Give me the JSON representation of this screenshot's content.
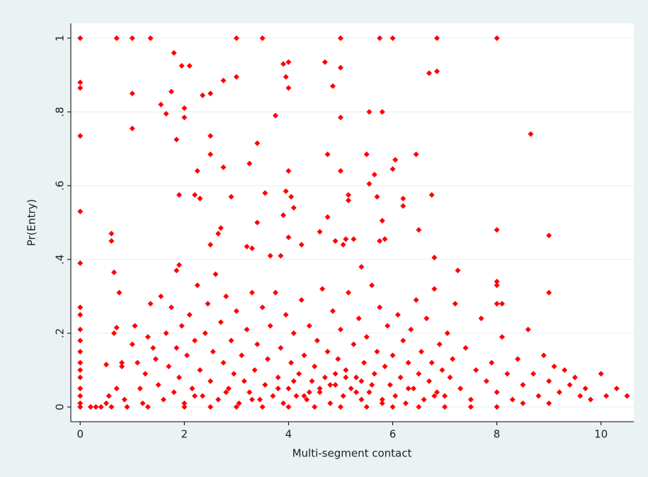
{
  "chart_data": {
    "type": "scatter",
    "x_label": "Multi-segment contact",
    "y_label": "Pr(Entry)",
    "color": "#ff0000",
    "grid": true,
    "xlim": [
      -0.18,
      10.63
    ],
    "ylim": [
      -0.04,
      1.04
    ],
    "xticks": [
      0,
      2,
      4,
      6,
      8,
      10
    ],
    "yticks": [
      0,
      {
        "value": 0.2,
        "label": ".2"
      },
      {
        "value": 0.4,
        "label": ".4"
      },
      {
        "value": 0.6,
        "label": ".6"
      },
      {
        "value": 0.8,
        "label": ".8"
      },
      1
    ],
    "x": [
      0,
      0,
      0,
      0,
      0,
      0,
      0,
      0,
      0,
      0,
      0,
      0,
      0,
      0,
      0,
      0,
      0,
      0,
      0.7,
      1,
      1.35,
      3,
      3.5,
      5,
      5.75,
      6,
      6.85,
      8,
      1.8,
      1.95,
      2.1,
      1,
      1.75,
      1.55,
      2,
      1.65,
      2,
      2.35,
      2.5,
      2.75,
      3,
      3.9,
      4,
      4.7,
      5,
      4.85,
      3.95,
      4,
      6.7,
      6.85,
      1,
      1.85,
      2.5,
      2.5,
      3.75,
      5,
      5.55,
      5.8,
      8.65,
      3.4,
      4.75,
      5.5,
      6.05,
      6.45,
      2.25,
      2.75,
      3.25,
      4,
      5,
      5.65,
      6,
      1.9,
      2.2,
      2.3,
      2.9,
      3.55,
      3.95,
      4.05,
      5.15,
      5.15,
      5.55,
      5.7,
      6.2,
      6.2,
      6.75,
      3.9,
      4.1,
      4.75,
      3.4,
      5.8,
      5.75,
      5.85,
      0.6,
      0.6,
      0.65,
      0.75,
      0.7,
      0.65,
      1.9,
      1.85,
      2.5,
      2.65,
      2.7,
      3.2,
      3.3,
      3.65,
      3.85,
      4,
      4.25,
      4.6,
      4.9,
      5.05,
      5.1,
      5.25,
      5.4,
      6.5,
      6.8,
      7.25,
      8,
      9,
      9,
      8,
      8,
      8,
      8.1,
      0.2,
      0.3,
      0.4,
      0.5,
      0.5,
      0.55,
      0.6,
      0.7,
      0.8,
      0.8,
      0.85,
      0.9,
      1,
      1.05,
      1.1,
      1.15,
      1.2,
      1.25,
      1.3,
      1.35,
      1.4,
      1.45,
      1.5,
      1.55,
      1.6,
      1.65,
      1.7,
      1.75,
      1.8,
      1.85,
      1.9,
      1.95,
      2,
      2.05,
      2.1,
      2.15,
      2.2,
      2.25,
      2.3,
      2.35,
      2.4,
      2.45,
      2.5,
      2.55,
      2.6,
      2.65,
      2.7,
      2.75,
      2.8,
      2.85,
      2.9,
      2.95,
      3,
      3.05,
      3.1,
      3.15,
      3.2,
      3.25,
      3.3,
      3.35,
      3.4,
      3.45,
      3.5,
      3.55,
      3.6,
      3.65,
      3.7,
      3.75,
      3.8,
      3.85,
      3.9,
      3.95,
      4,
      4.05,
      4.1,
      4.15,
      4.2,
      4.25,
      4.3,
      4.35,
      4.4,
      4.45,
      4.5,
      4.55,
      4.6,
      4.65,
      4.7,
      4.75,
      4.8,
      4.85,
      4.9,
      4.95,
      5,
      5.05,
      5.1,
      5.15,
      5.2,
      5.25,
      5.3,
      5.35,
      5.4,
      5.45,
      5.5,
      5.55,
      5.6,
      5.65,
      5.7,
      5.75,
      5.8,
      5.85,
      5.9,
      5.95,
      6,
      6.05,
      6.1,
      6.15,
      6.2,
      6.25,
      6.3,
      6.35,
      6.4,
      6.45,
      6.5,
      6.55,
      6.6,
      6.65,
      6.7,
      6.75,
      6.8,
      6.85,
      6.9,
      6.95,
      7,
      7.05,
      7.1,
      7.15,
      7.2,
      7.3,
      7.4,
      7.5,
      7.6,
      7.7,
      7.8,
      7.9,
      8,
      8.1,
      8.2,
      8.3,
      8.4,
      8.5,
      8.6,
      8.7,
      8.8,
      8.9,
      9,
      9.1,
      9.2,
      9.3,
      9.4,
      9.5,
      9.6,
      9.7,
      9.8,
      10,
      10.1,
      10.3,
      10.5,
      1.3,
      2,
      2.5,
      3,
      3.5,
      4,
      4.5,
      5,
      5.5,
      6,
      6.5,
      7,
      7.5,
      8,
      8.5,
      9,
      2.2,
      2.8,
      3.3,
      3.8,
      4.3,
      4.8,
      5.3,
      5.8,
      6.3,
      6.8,
      4.1,
      4.6,
      5.1,
      5.6,
      4.4,
      4.9,
      5.4
    ],
    "values": [
      1,
      0.88,
      0.865,
      0.735,
      0.53,
      0.39,
      0.27,
      0.25,
      0.21,
      0.18,
      0.15,
      0.12,
      0.1,
      0.08,
      0.05,
      0.03,
      0.01,
      0,
      1,
      1,
      1,
      1,
      1,
      1,
      1,
      1,
      1,
      1,
      0.96,
      0.925,
      0.925,
      0.85,
      0.855,
      0.82,
      0.81,
      0.795,
      0.785,
      0.845,
      0.85,
      0.885,
      0.895,
      0.93,
      0.935,
      0.935,
      0.92,
      0.87,
      0.895,
      0.865,
      0.905,
      0.91,
      0.755,
      0.725,
      0.735,
      0.685,
      0.79,
      0.785,
      0.8,
      0.8,
      0.74,
      0.715,
      0.685,
      0.685,
      0.67,
      0.685,
      0.64,
      0.65,
      0.66,
      0.64,
      0.64,
      0.63,
      0.645,
      0.575,
      0.575,
      0.565,
      0.57,
      0.58,
      0.585,
      0.57,
      0.575,
      0.56,
      0.605,
      0.57,
      0.565,
      0.545,
      0.575,
      0.52,
      0.54,
      0.515,
      0.5,
      0.505,
      0.45,
      0.455,
      0.47,
      0.45,
      0.365,
      0.31,
      0.215,
      0.2,
      0.385,
      0.37,
      0.44,
      0.47,
      0.485,
      0.435,
      0.43,
      0.41,
      0.41,
      0.46,
      0.44,
      0.475,
      0.45,
      0.44,
      0.455,
      0.455,
      0.38,
      0.48,
      0.405,
      0.37,
      0.48,
      0.465,
      0.31,
      0.34,
      0.33,
      0.28,
      0.28,
      0,
      0,
      0,
      0.01,
      0.115,
      0.03,
      0,
      0.05,
      0.11,
      0.12,
      0.02,
      0,
      0.17,
      0.22,
      0.12,
      0.05,
      0.01,
      0.09,
      0.19,
      0.28,
      0.16,
      0.13,
      0.06,
      0.3,
      0.02,
      0.2,
      0.11,
      0.27,
      0.04,
      0.16,
      0.08,
      0.22,
      0.01,
      0.14,
      0.25,
      0.05,
      0.18,
      0.33,
      0.1,
      0.03,
      0.2,
      0.28,
      0.07,
      0.15,
      0.36,
      0.02,
      0.23,
      0.12,
      0.3,
      0.05,
      0.18,
      0.09,
      0.26,
      0.01,
      0.14,
      0.07,
      0.21,
      0.04,
      0.31,
      0.1,
      0.17,
      0.02,
      0.27,
      0.06,
      0.13,
      0.22,
      0.03,
      0.31,
      0.08,
      0.16,
      0.01,
      0.25,
      0.05,
      0.12,
      0.2,
      0.03,
      0.09,
      0.29,
      0.14,
      0.02,
      0.22,
      0.07,
      0.11,
      0.18,
      0.04,
      0.32,
      0.08,
      0.15,
      0.01,
      0.26,
      0.06,
      0.13,
      0.21,
      0.03,
      0.1,
      0.31,
      0.05,
      0.17,
      0.08,
      0.24,
      0.02,
      0.12,
      0.19,
      0.04,
      0.33,
      0.09,
      0.15,
      0.27,
      0.01,
      0.11,
      0.22,
      0.06,
      0.14,
      0.03,
      0.25,
      0.08,
      0.18,
      0.01,
      0.12,
      0.21,
      0.05,
      0.29,
      0.09,
      0.15,
      0.02,
      0.24,
      0.07,
      0.12,
      0.32,
      0.04,
      0.17,
      0.1,
      0.03,
      0.2,
      0.08,
      0.13,
      0.28,
      0.05,
      0.16,
      0.02,
      0.1,
      0.24,
      0.07,
      0.12,
      0.04,
      0.19,
      0.09,
      0.02,
      0.13,
      0.06,
      0.21,
      0.09,
      0.03,
      0.14,
      0.07,
      0.11,
      0.04,
      0.1,
      0.06,
      0.08,
      0.03,
      0.05,
      0.02,
      0.09,
      0.03,
      0.05,
      0.03,
      0,
      0,
      0,
      0,
      0,
      0,
      0,
      0,
      0,
      0,
      0,
      0,
      0,
      0,
      0.01,
      0.01,
      0.03,
      0.04,
      0.02,
      0.05,
      0.03,
      0.06,
      0.04,
      0.02,
      0.05,
      0.03,
      0.07,
      0.05,
      0.08,
      0.06,
      0.04,
      0.09,
      0.07
    ]
  }
}
